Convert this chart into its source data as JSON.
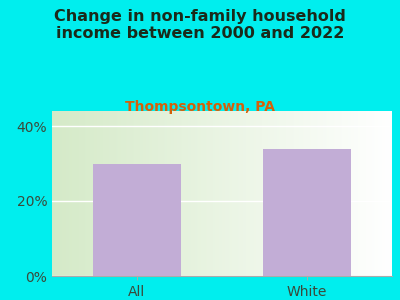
{
  "categories": [
    "All",
    "White"
  ],
  "values": [
    30,
    34
  ],
  "bar_color": "#c2add6",
  "title": "Change in non-family household\nincome between 2000 and 2022",
  "subtitle": "Thompsontown, PA",
  "title_color": "#1a2a1a",
  "subtitle_color": "#d4600a",
  "background_color": "#00eeee",
  "plot_bg_green": [
    0.835,
    0.918,
    0.784
  ],
  "plot_bg_white": [
    1.0,
    1.0,
    1.0
  ],
  "ylim": [
    0,
    44
  ],
  "yticks": [
    0,
    20,
    40
  ],
  "ytick_labels": [
    "0%",
    "20%",
    "40%"
  ],
  "title_fontsize": 11.5,
  "subtitle_fontsize": 10,
  "tick_fontsize": 10,
  "bar_width": 0.52,
  "tick_color": "#3a4a3a"
}
